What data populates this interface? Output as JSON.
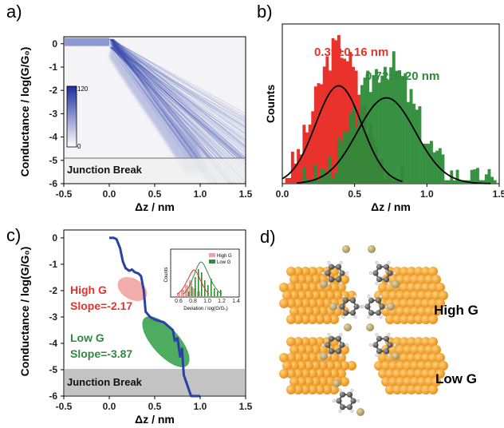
{
  "panels": {
    "a": {
      "label": "a)",
      "ylabel": "Conductance / log(G/G₀)",
      "xlabel": "Δz / nm",
      "annotation": "Junction Break",
      "colorbar": {
        "max_label": "120",
        "min_label": "0"
      },
      "chart_data": {
        "type": "heatmap",
        "x_ticks": [
          "-0.5",
          "0.0",
          "0.5",
          "1.0",
          "1.5"
        ],
        "y_ticks": [
          "0",
          "-1",
          "-2",
          "-3",
          "-4",
          "-5",
          "-6"
        ],
        "xlim": [
          -0.5,
          1.5
        ],
        "ylim": [
          -6,
          0.3
        ],
        "colorbar_range": [
          0,
          120
        ],
        "junction_break_level": -4.8
      }
    },
    "b": {
      "label": "b)",
      "ylabel": "Counts",
      "xlabel": "Δz / nm",
      "annotation_red": "0.39±0.16 nm",
      "annotation_green": "0.72±0.20 nm",
      "chart_data": {
        "type": "bar",
        "x_ticks": [
          "0.0",
          "0.5",
          "1.0",
          "1.5"
        ],
        "xlim": [
          0,
          1.5
        ],
        "series": [
          {
            "color": "#e8322b",
            "fit_mean": 0.39,
            "fit_sd": 0.16
          },
          {
            "color": "#2e8b3a",
            "fit_mean": 0.72,
            "fit_sd": 0.2
          }
        ]
      }
    },
    "c": {
      "label": "c)",
      "ylabel": "Conductance / log(G/G₀)",
      "xlabel": "Δz / nm",
      "annotation": "Junction Break",
      "high_g": {
        "title": "High G",
        "slope": "Slope=-2.17"
      },
      "low_g": {
        "title": "Low G",
        "slope": "Slope=-3.87"
      },
      "inset": {
        "legend": [
          "High G",
          "Low G"
        ],
        "ylabel": "Counts",
        "xlabel": "Deviation / log(G/G₀)",
        "x_ticks": [
          "0.6",
          "0.8",
          "1.0",
          "1.2",
          "1.4"
        ]
      },
      "chart_data": {
        "type": "line",
        "x_ticks": [
          "-0.5",
          "0.0",
          "0.5",
          "1.0",
          "1.5"
        ],
        "y_ticks": [
          "0",
          "-1",
          "-2",
          "-3",
          "-4",
          "-5",
          "-6"
        ],
        "xlim": [
          -0.5,
          1.5
        ],
        "ylim": [
          -6,
          0.3
        ],
        "x": [
          0.0,
          0.05,
          0.08,
          0.12,
          0.15,
          0.18,
          0.2,
          0.22,
          0.25,
          0.28,
          0.32,
          0.35,
          0.38,
          0.4,
          0.45,
          0.5,
          0.55,
          0.6,
          0.65,
          0.7,
          0.72,
          0.75,
          0.78,
          0.8,
          0.82,
          0.85,
          0.88,
          0.9,
          0.95,
          1.0
        ],
        "y": [
          0.0,
          0.0,
          -0.05,
          -0.4,
          -0.9,
          -1.15,
          -1.2,
          -1.25,
          -1.2,
          -1.3,
          -1.35,
          -1.45,
          -2.0,
          -2.8,
          -3.0,
          -3.1,
          -3.15,
          -3.2,
          -3.35,
          -3.5,
          -3.9,
          -3.8,
          -4.5,
          -4.2,
          -5.2,
          -5.5,
          -5.8,
          -6.0,
          -6.0,
          -6.0
        ]
      }
    },
    "d": {
      "label": "d)",
      "high_label": "High G",
      "low_label": "Low G"
    }
  }
}
